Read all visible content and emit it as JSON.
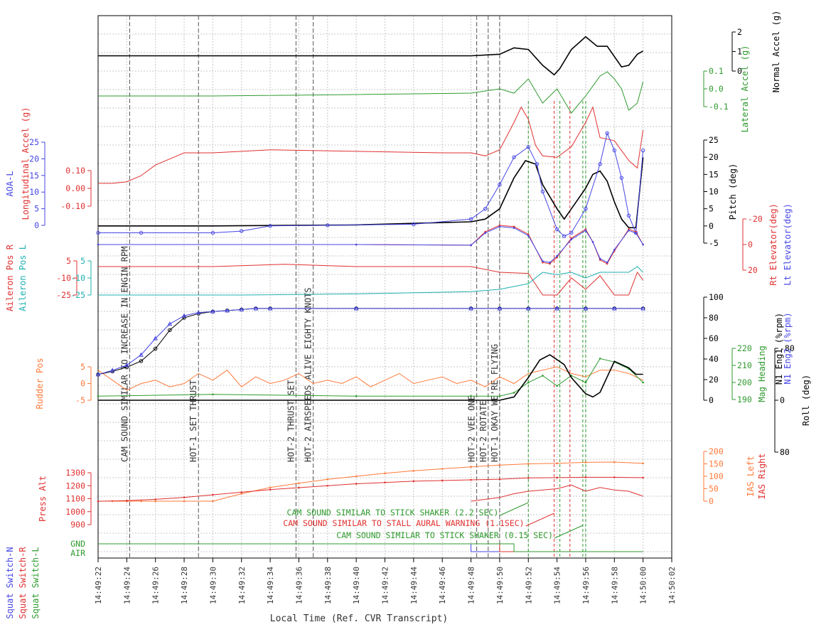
{
  "chart_data": {
    "type": "line",
    "xlabel": "Local Time (Ref. CVR Transcript)",
    "x_ticks": [
      "14:49:22",
      "14:49:24",
      "14:49:26",
      "14:49:28",
      "14:49:30",
      "14:49:32",
      "14:49:34",
      "14:49:36",
      "14:49:38",
      "14:49:40",
      "14:49:42",
      "14:49:44",
      "14:49:46",
      "14:49:48",
      "14:49:50",
      "14:49:52",
      "14:49:54",
      "14:49:56",
      "14:49:58",
      "14:50:00",
      "14:50:02"
    ],
    "xlim": [
      "14:49:22",
      "14:50:02"
    ],
    "grid": true,
    "right_axes": [
      {
        "label": "Normal Accel (g)",
        "ticks": [
          "0",
          "1",
          "2"
        ],
        "color": "#000000"
      },
      {
        "label": "Lateral Accel (g)",
        "ticks": [
          "-0.1",
          "0.0",
          "0.1"
        ],
        "color": "#2e9a2e"
      },
      {
        "label": "Pitch (deg)",
        "ticks": [
          "-5",
          "0",
          "5",
          "10",
          "15",
          "20",
          "25"
        ],
        "color": "#000000"
      },
      {
        "label": "Rt Elevator(deg)",
        "ticks": [
          "-20",
          "0",
          "20"
        ],
        "color": "#e03030"
      },
      {
        "label": "Lt Elevator(deg)",
        "ticks": [],
        "color": "#4646e6"
      },
      {
        "label": "N1 Eng1 (%rpm)",
        "ticks": [
          "0",
          "20",
          "40",
          "60",
          "80",
          "100"
        ],
        "color": "#000000"
      },
      {
        "label": "N1 Eng2 (%rpm)",
        "ticks": [],
        "color": "#4646e6"
      },
      {
        "label": "Mag Heading",
        "ticks": [
          "190",
          "200",
          "210",
          "220"
        ],
        "color": "#2e9a2e"
      },
      {
        "label": "Roll (deg)",
        "ticks": [
          "-80",
          "0",
          "80"
        ],
        "color": "#000000"
      },
      {
        "label": "IAS Left",
        "ticks": [
          "0",
          "50",
          "100",
          "150",
          "200"
        ],
        "color": "#ff7a3a"
      },
      {
        "label": "IAS Right",
        "ticks": [],
        "color": "#e03030"
      }
    ],
    "left_axes": [
      {
        "label": "AOA-L",
        "ticks": [
          "0",
          "5",
          "10",
          "15",
          "20",
          "25"
        ],
        "color": "#4646e6"
      },
      {
        "label": "Longitudinal Accel (g)",
        "ticks": [
          "-0.10",
          "0.00",
          "0.10"
        ],
        "color": "#e03030"
      },
      {
        "label": "Aileron Pos R",
        "ticks": [
          "-25",
          "-10",
          "5"
        ],
        "color": "#e03030"
      },
      {
        "label": "Aileron Pos L",
        "ticks": [
          "-25",
          "-10",
          "5"
        ],
        "color": "#20b0b0"
      },
      {
        "label": "Rudder Pos",
        "ticks": [
          "-5",
          "0",
          "5"
        ],
        "color": "#ff7a3a"
      },
      {
        "label": "Press Alt",
        "ticks": [
          "900",
          "1000",
          "1100",
          "1200",
          "1300"
        ],
        "color": "#e03030"
      },
      {
        "label": "Squat Switch-N",
        "ticks": [],
        "color": "#4646e6"
      },
      {
        "label": "Squat Switch-R",
        "ticks": [],
        "color": "#e03030"
      },
      {
        "label": "Squat Switch-L",
        "ticks": [
          "GND",
          "AIR"
        ],
        "color": "#2e9a2e"
      }
    ],
    "events": [
      {
        "time": 24.2,
        "label": "CAM SOUND SIMILAR TO INCREASE IN ENGIN RPM"
      },
      {
        "time": 29.0,
        "label": "HOT-1 SET THRUST"
      },
      {
        "time": 35.8,
        "label": "HOT-2 THRUST SET"
      },
      {
        "time": 37.0,
        "label": "HOT-2 AIRSPEEDS ALIVE EIGHTY KNOTS"
      },
      {
        "time": 48.4,
        "label": "HOT-2 VEE ONE"
      },
      {
        "time": 49.2,
        "label": "HOT-2 ROTATE"
      },
      {
        "time": 50.0,
        "label": "HOT-1 OKAY WE'RE FLYING"
      }
    ],
    "cam_events": [
      {
        "label": "CAM SOUND SIMILAR TO STICK SHAKER (2.2 SEC)",
        "start": 52.0,
        "end": 54.2,
        "color": "#2e9a2e"
      },
      {
        "label": "CAM SOUND SIMILAR TO STALL AURAL WARNING (1.1SEC)",
        "start": 53.8,
        "end": 54.9,
        "color": "#e03030"
      },
      {
        "label": "CAM SOUND SIMILAR TO STICK SHAKER (0.15 SEC)",
        "start": 55.8,
        "end": 56.0,
        "color": "#2e9a2e"
      }
    ],
    "series": [
      {
        "name": "Normal Accel",
        "unit": "g",
        "color": "#000000",
        "x": [
          22,
          40,
          48,
          50,
          51,
          52,
          53,
          53.8,
          54.2,
          55,
          56,
          56.8,
          57.5,
          58.5,
          59,
          59.6,
          60
        ],
        "y": [
          1,
          1,
          1,
          1.1,
          1.5,
          1.4,
          0.4,
          -0.2,
          0.2,
          1.4,
          2.2,
          1.6,
          1.6,
          0.3,
          0.4,
          1.1,
          1.3
        ]
      },
      {
        "name": "Lateral Accel",
        "unit": "g",
        "color": "#2e9a2e",
        "x": [
          22,
          30,
          40,
          48,
          50,
          51,
          52,
          53,
          54,
          55,
          56,
          57,
          57.5,
          58,
          58.5,
          59,
          59.6,
          60
        ],
        "y": [
          0,
          0,
          0.01,
          0.02,
          0.05,
          0.02,
          0.12,
          -0.05,
          0.05,
          -0.12,
          0.0,
          0.14,
          0.17,
          0.12,
          0.05,
          -0.1,
          -0.05,
          0.1
        ]
      },
      {
        "name": "Longitudinal Accel",
        "unit": "g",
        "color": "#e03030",
        "x": [
          22,
          23,
          24,
          25,
          26,
          28,
          30,
          34,
          40,
          46,
          48,
          49,
          50,
          51,
          51.5,
          52,
          52.5,
          53,
          54,
          55,
          56,
          56.5,
          57,
          58,
          59,
          59.6,
          60
        ],
        "y": [
          0,
          0,
          0.01,
          0.05,
          0.12,
          0.2,
          0.2,
          0.22,
          0.21,
          0.2,
          0.2,
          0.18,
          0.22,
          0.4,
          0.5,
          0.42,
          0.25,
          0.18,
          0.17,
          0.24,
          0.4,
          0.5,
          0.3,
          0.28,
          0.15,
          0.1,
          0.35
        ]
      },
      {
        "name": "Pitch",
        "unit": "deg",
        "color": "#000000",
        "x": [
          22,
          30,
          40,
          48,
          49,
          50,
          51,
          51.8,
          52.5,
          53,
          54,
          54.5,
          55,
          55.5,
          56,
          56.5,
          57,
          57.5,
          58,
          58.5,
          59,
          59.5,
          60
        ],
        "y": [
          0,
          0,
          0.3,
          1.2,
          2,
          5,
          14,
          19,
          18,
          12,
          5,
          2,
          5,
          8,
          11,
          15,
          16,
          13,
          7,
          2,
          -0.5,
          -0.5,
          20
        ]
      },
      {
        "name": "AOA-L",
        "unit": "deg",
        "color": "#4646e6",
        "x": [
          22,
          25,
          30,
          32,
          34,
          38,
          44,
          48,
          49,
          50,
          51,
          52,
          52.6,
          53,
          54,
          54.5,
          55,
          56,
          57,
          57.5,
          58,
          58.5,
          59,
          59.5,
          60
        ],
        "y": [
          -2,
          -2,
          -2,
          -1.5,
          0,
          0.2,
          0.5,
          2,
          5,
          12,
          20,
          23,
          18,
          10,
          -1,
          -3,
          -2,
          5,
          18,
          27,
          22,
          14,
          3,
          -2,
          22
        ]
      },
      {
        "name": "Rt Elevator",
        "unit": "deg",
        "color": "#e03030",
        "x": [
          22,
          40,
          48,
          49,
          50,
          51,
          52,
          53,
          53.5,
          54,
          55,
          56,
          56.5,
          57,
          57.5,
          58,
          59,
          59.5,
          60
        ],
        "y": [
          0,
          0,
          0.5,
          -10,
          -15,
          -14,
          -8,
          14,
          15,
          10,
          -5,
          -12,
          -2,
          12,
          15,
          5,
          -12,
          -10,
          0
        ]
      },
      {
        "name": "Lt Elevator",
        "unit": "deg",
        "color": "#4646e6",
        "x": [
          22,
          40,
          48,
          49,
          50,
          51,
          52,
          53,
          53.5,
          54,
          55,
          56,
          56.5,
          57,
          57.5,
          58,
          59,
          59.5,
          60
        ],
        "y": [
          0,
          0,
          0.5,
          -9,
          -14,
          -13,
          -7,
          13,
          14,
          9,
          -4,
          -11,
          -2,
          11,
          14,
          4,
          -11,
          -9,
          0
        ]
      },
      {
        "name": "Aileron Pos R",
        "unit": "deg",
        "color": "#e03030",
        "x": [
          22,
          30,
          35,
          40,
          48,
          50,
          52,
          53,
          54,
          55,
          56,
          57,
          58,
          59,
          59.6,
          60
        ],
        "y": [
          0,
          0,
          2,
          0,
          0,
          -5,
          -6,
          -25,
          -25,
          -10,
          -20,
          -8,
          -25,
          -25,
          -5,
          -12
        ]
      },
      {
        "name": "Aileron Pos L",
        "unit": "deg",
        "color": "#20b0b0",
        "x": [
          22,
          32,
          40,
          48,
          50,
          52,
          53,
          54,
          55,
          56,
          57,
          58,
          59,
          59.6,
          60
        ],
        "y": [
          -25,
          -25,
          -24,
          -22,
          -20,
          -15,
          -5,
          -7,
          -5,
          -10,
          -5,
          -5,
          -5,
          0,
          -5
        ]
      },
      {
        "name": "Rudder Pos",
        "unit": "deg",
        "color": "#ff7a3a",
        "x": [
          22,
          23,
          24,
          25,
          26,
          27,
          28,
          29,
          30,
          31,
          32,
          33,
          34,
          35,
          36,
          37,
          38,
          39,
          40,
          41,
          42,
          43,
          44,
          45,
          46,
          47,
          48,
          49,
          50,
          51,
          52,
          53,
          54,
          55,
          56,
          57,
          58,
          59,
          60
        ],
        "y": [
          4,
          1,
          -2,
          0,
          1,
          -1,
          0,
          3,
          1,
          4,
          -1,
          2,
          0,
          1,
          3,
          0,
          1,
          0,
          2,
          -1,
          1,
          3,
          0,
          1,
          2,
          0,
          1,
          -1,
          2,
          0,
          3,
          4,
          5,
          3,
          2,
          4,
          4,
          3,
          1
        ]
      },
      {
        "name": "N1 Eng1",
        "unit": "%rpm",
        "color": "#000000",
        "x": [
          22,
          23,
          24,
          25,
          26,
          27,
          28,
          29,
          30,
          31,
          32,
          33,
          34,
          40,
          48,
          50,
          52,
          54,
          56,
          58,
          60
        ],
        "y": [
          25,
          28,
          32,
          38,
          50,
          68,
          80,
          84,
          86,
          87,
          88,
          89,
          89,
          89,
          89,
          89,
          89,
          89,
          89,
          89,
          89
        ]
      },
      {
        "name": "N1 Eng2",
        "unit": "%rpm",
        "color": "#4646e6",
        "x": [
          22,
          23,
          24,
          25,
          26,
          27,
          28,
          29,
          30,
          31,
          32,
          33,
          34,
          40,
          48,
          50,
          52,
          54,
          56,
          58,
          60
        ],
        "y": [
          25,
          29,
          34,
          44,
          60,
          74,
          82,
          85,
          86,
          87,
          88,
          89,
          89,
          89,
          89,
          89,
          89,
          89,
          89,
          89,
          89
        ]
      },
      {
        "name": "Mag Heading",
        "unit": "deg",
        "color": "#2e9a2e",
        "x": [
          22,
          30,
          40,
          48,
          50,
          51,
          52,
          53,
          54,
          55,
          56,
          57,
          58,
          59,
          60
        ],
        "y": [
          192,
          193,
          192,
          192,
          192,
          194,
          200,
          204,
          198,
          204,
          200,
          214,
          212,
          208,
          200
        ]
      },
      {
        "name": "Roll",
        "unit": "deg",
        "color": "#000000",
        "x": [
          22,
          40,
          48,
          50,
          51,
          52,
          52.8,
          53.5,
          54.5,
          55,
          56,
          56.5,
          57,
          58,
          59,
          59.5,
          60
        ],
        "y": [
          0,
          0,
          0,
          0,
          -5,
          -35,
          -62,
          -70,
          -55,
          -35,
          -10,
          -5,
          -12,
          -60,
          -50,
          -40,
          -40
        ]
      },
      {
        "name": "IAS Left",
        "unit": "kt",
        "color": "#ff7a3a",
        "x": [
          22,
          23,
          24,
          25,
          26,
          28,
          30,
          32,
          34,
          36,
          38,
          40,
          42,
          44,
          46,
          48,
          50,
          52,
          54,
          56,
          58,
          60
        ],
        "y": [
          0,
          0,
          0,
          0,
          0,
          0,
          0,
          30,
          55,
          72,
          88,
          100,
          112,
          122,
          130,
          138,
          145,
          150,
          152,
          156,
          157,
          152
        ]
      },
      {
        "name": "IAS Right",
        "unit": "kt",
        "color": "#e03030",
        "x": [
          48,
          50,
          51,
          52,
          53,
          54,
          55,
          56,
          57,
          58,
          59,
          60
        ],
        "y": [
          0,
          15,
          30,
          40,
          45,
          50,
          65,
          40,
          55,
          45,
          40,
          20
        ]
      },
      {
        "name": "Press Alt",
        "unit": "ft",
        "color": "#e03030",
        "x": [
          22,
          24,
          26,
          28,
          30,
          32,
          34,
          36,
          38,
          40,
          42,
          44,
          46,
          48,
          50,
          52,
          54,
          56,
          58,
          60
        ],
        "y": [
          1080,
          1085,
          1095,
          1110,
          1130,
          1150,
          1170,
          1185,
          1200,
          1215,
          1225,
          1235,
          1240,
          1245,
          1250,
          1260,
          1262,
          1265,
          1265,
          1262
        ]
      },
      {
        "name": "Squat Switch-N",
        "unit": "",
        "color": "#4646e6",
        "x": [
          22,
          44,
          47,
          48,
          60
        ],
        "y": [
          1,
          1,
          1,
          0,
          0
        ]
      },
      {
        "name": "Squat Switch-R",
        "unit": "",
        "color": "#e03030",
        "x": [
          22,
          49,
          50,
          60
        ],
        "y": [
          1,
          1,
          0,
          0
        ]
      },
      {
        "name": "Squat Switch-L",
        "unit": "",
        "color": "#2e9a2e",
        "x": [
          22,
          50,
          51,
          60
        ],
        "y": [
          1,
          1,
          0,
          0
        ]
      }
    ]
  }
}
